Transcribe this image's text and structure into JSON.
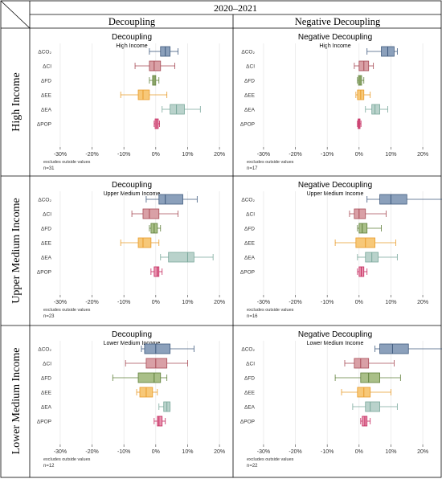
{
  "header": {
    "period": "2020–2021",
    "col_left": "Decoupling",
    "col_right": "Negative Decoupling"
  },
  "rows": [
    {
      "label": "High Income"
    },
    {
      "label": "Upper Medium Income"
    },
    {
      "label": "Lower Medium Income"
    }
  ],
  "colors": {
    "ΔCO₂": {
      "fill": "#8ba0bb",
      "stroke": "#3f5a7e"
    },
    "ΔCI": {
      "fill": "#d9a0a6",
      "stroke": "#a84c57"
    },
    "ΔFD": {
      "fill": "#a9bf88",
      "stroke": "#5f7f3a"
    },
    "ΔEE": {
      "fill": "#f7c878",
      "stroke": "#e89b2a"
    },
    "ΔEA": {
      "fill": "#b9d2cb",
      "stroke": "#7aa89b"
    },
    "ΔPOP": {
      "fill": "#e793ae",
      "stroke": "#c4285e"
    }
  },
  "chart_data": [
    {
      "type": "box",
      "title": "Decoupling",
      "subtitle": "High Income",
      "note": "excludes outside values",
      "n": "n=31",
      "categories": [
        "ΔCO₂",
        "ΔCI",
        "ΔFD",
        "ΔEE",
        "ΔEA",
        "ΔPOP"
      ],
      "x_ticks": [
        "-30%",
        "-20%",
        "-10%",
        "0%",
        "10%",
        "20%"
      ],
      "xlim": [
        -32,
        22
      ],
      "boxes": [
        {
          "label": "ΔCO₂",
          "min": -2,
          "q1": 1.5,
          "median": 3,
          "q3": 4.5,
          "max": 7
        },
        {
          "label": "ΔCI",
          "min": -6.5,
          "q1": -2,
          "median": -0.5,
          "q3": 1.5,
          "max": 6
        },
        {
          "label": "ΔFD",
          "min": -2,
          "q1": -1,
          "median": -0.5,
          "q3": 0,
          "max": 1
        },
        {
          "label": "ΔEE",
          "min": -11,
          "q1": -5.5,
          "median": -4,
          "q3": -2,
          "max": 3.5
        },
        {
          "label": "ΔEA",
          "min": 2,
          "q1": 4.5,
          "median": 6.5,
          "q3": 9,
          "max": 14
        },
        {
          "label": "ΔPOP",
          "min": -0.5,
          "q1": -0.2,
          "median": 0.3,
          "q3": 0.8,
          "max": 1.2
        }
      ]
    },
    {
      "type": "box",
      "title": "Negative Decoupling",
      "subtitle": "High Income",
      "note": "excludes outside values",
      "n": "n=17",
      "categories": [
        "ΔCO₂",
        "ΔCI",
        "ΔFD",
        "ΔEE",
        "ΔEA",
        "ΔPOP"
      ],
      "x_ticks": [
        "-30%",
        "-20%",
        "-10%",
        "0%",
        "10%",
        "20%"
      ],
      "xlim": [
        -32,
        22
      ],
      "boxes": [
        {
          "label": "ΔCO₂",
          "min": 2.5,
          "q1": 7,
          "median": 9,
          "q3": 11,
          "max": 12
        },
        {
          "label": "ΔCI",
          "min": -1.5,
          "q1": 0,
          "median": 1.5,
          "q3": 3,
          "max": 4.5
        },
        {
          "label": "ΔFD",
          "min": -0.5,
          "q1": -0.2,
          "median": 0.3,
          "q3": 0.8,
          "max": 1.5
        },
        {
          "label": "ΔEE",
          "min": -1,
          "q1": -0.5,
          "median": 0.5,
          "q3": 1.5,
          "max": 3.5
        },
        {
          "label": "ΔEA",
          "min": 2,
          "q1": 4,
          "median": 5,
          "q3": 6.5,
          "max": 9
        },
        {
          "label": "ΔPOP",
          "min": -0.5,
          "q1": -0.3,
          "median": 0,
          "q3": 0.3,
          "max": 0.6
        }
      ]
    },
    {
      "type": "box",
      "title": "Decoupling",
      "subtitle": "Upper Medium Income",
      "note": "excludes outside values",
      "n": "n=23",
      "categories": [
        "ΔCO₂",
        "ΔCI",
        "ΔFD",
        "ΔEE",
        "ΔEA",
        "ΔPOP"
      ],
      "x_ticks": [
        "-30%",
        "-20%",
        "-10%",
        "0%",
        "10%",
        "20%"
      ],
      "xlim": [
        -32,
        22
      ],
      "boxes": [
        {
          "label": "ΔCO₂",
          "min": -3,
          "q1": 1,
          "median": 3,
          "q3": 8.5,
          "max": 13
        },
        {
          "label": "ΔCI",
          "min": -7.5,
          "q1": -4,
          "median": -2,
          "q3": 1,
          "max": 7
        },
        {
          "label": "ΔFD",
          "min": -2,
          "q1": -1.5,
          "median": -0.5,
          "q3": 0.5,
          "max": 1.5
        },
        {
          "label": "ΔEE",
          "min": -11,
          "q1": -5.5,
          "median": -4,
          "q3": -1.5,
          "max": 1
        },
        {
          "label": "ΔEA",
          "min": 1.5,
          "q1": 4,
          "median": 10,
          "q3": 12,
          "max": 18
        },
        {
          "label": "ΔPOP",
          "min": -1.5,
          "q1": -0.5,
          "median": 0.5,
          "q3": 1,
          "max": 2
        }
      ]
    },
    {
      "type": "box",
      "title": "Negative Decoupling",
      "subtitle": "Upper Medium Income",
      "note": "excludes outside values",
      "n": "n=16",
      "categories": [
        "ΔCO₂",
        "ΔCI",
        "ΔFD",
        "ΔEE",
        "ΔEA",
        "ΔPOP"
      ],
      "x_ticks": [
        "-30%",
        "-20%",
        "-10%",
        "0%",
        "10%",
        "20%"
      ],
      "xlim": [
        -32,
        22
      ],
      "boxes": [
        {
          "label": "ΔCO₂",
          "min": 2.5,
          "q1": 6.5,
          "median": 10,
          "q3": 15,
          "max": 29
        },
        {
          "label": "ΔCI",
          "min": -3,
          "q1": -1.5,
          "median": 0,
          "q3": 2,
          "max": 8.5
        },
        {
          "label": "ΔFD",
          "min": -0.5,
          "q1": 0,
          "median": 1,
          "q3": 2.5,
          "max": 7
        },
        {
          "label": "ΔEE",
          "min": -7.5,
          "q1": -1,
          "median": 2,
          "q3": 5,
          "max": 11.5
        },
        {
          "label": "ΔEA",
          "min": -0.5,
          "q1": 2,
          "median": 4,
          "q3": 6,
          "max": 12
        },
        {
          "label": "ΔPOP",
          "min": -0.5,
          "q1": 0,
          "median": 0.7,
          "q3": 1.5,
          "max": 2.5
        }
      ]
    },
    {
      "type": "box",
      "title": "Decoupling",
      "subtitle": "Lower Medium Income",
      "note": "excludes outside values",
      "n": "n=12",
      "categories": [
        "ΔCO₂",
        "ΔCI",
        "ΔFD",
        "ΔEE",
        "ΔEA",
        "ΔPOP"
      ],
      "x_ticks": [
        "-30%",
        "-20%",
        "-10%",
        "0%",
        "10%",
        "20%"
      ],
      "xlim": [
        -32,
        22
      ],
      "boxes": [
        {
          "label": "ΔCO₂",
          "min": -4.5,
          "q1": -3.5,
          "median": 0,
          "q3": 4.5,
          "max": 12
        },
        {
          "label": "ΔCI",
          "min": -9.5,
          "q1": -3,
          "median": 0,
          "q3": 3.5,
          "max": 10
        },
        {
          "label": "ΔFD",
          "min": -13.5,
          "q1": -5.5,
          "median": -0.5,
          "q3": 1.5,
          "max": 3.5
        },
        {
          "label": "ΔEE",
          "min": -6,
          "q1": -5,
          "median": -3,
          "q3": -1,
          "max": 0.5
        },
        {
          "label": "ΔEA",
          "min": 1,
          "q1": 2.5,
          "median": 3.5,
          "q3": 4.5,
          "max": 4.5
        },
        {
          "label": "ΔPOP",
          "min": -0.5,
          "q1": 0.5,
          "median": 1,
          "q3": 2,
          "max": 3
        }
      ]
    },
    {
      "type": "box",
      "title": "Negative Decoupling",
      "subtitle": "Lower Medium Income",
      "note": "excludes outside values",
      "n": "n=22",
      "categories": [
        "ΔCO₂",
        "ΔCI",
        "ΔFD",
        "ΔEE",
        "ΔEA",
        "ΔPOP"
      ],
      "x_ticks": [
        "-30%",
        "-20%",
        "-10%",
        "0%",
        "10%",
        "20%"
      ],
      "xlim": [
        -32,
        22
      ],
      "boxes": [
        {
          "label": "ΔCO₂",
          "min": 5,
          "q1": 6.5,
          "median": 10.5,
          "q3": 15.5,
          "max": 27.5
        },
        {
          "label": "ΔCI",
          "min": -4.5,
          "q1": -1.5,
          "median": 0.5,
          "q3": 3,
          "max": 11
        },
        {
          "label": "ΔFD",
          "min": -7.5,
          "q1": 0.5,
          "median": 3,
          "q3": 6.5,
          "max": 13
        },
        {
          "label": "ΔEE",
          "min": -5.5,
          "q1": -0.5,
          "median": 1.5,
          "q3": 3.5,
          "max": 10
        },
        {
          "label": "ΔEA",
          "min": -2,
          "q1": 2,
          "median": 3.5,
          "q3": 6.5,
          "max": 12
        },
        {
          "label": "ΔPOP",
          "min": 0.5,
          "q1": 1,
          "median": 1.8,
          "q3": 2.5,
          "max": 3.5
        }
      ]
    }
  ]
}
